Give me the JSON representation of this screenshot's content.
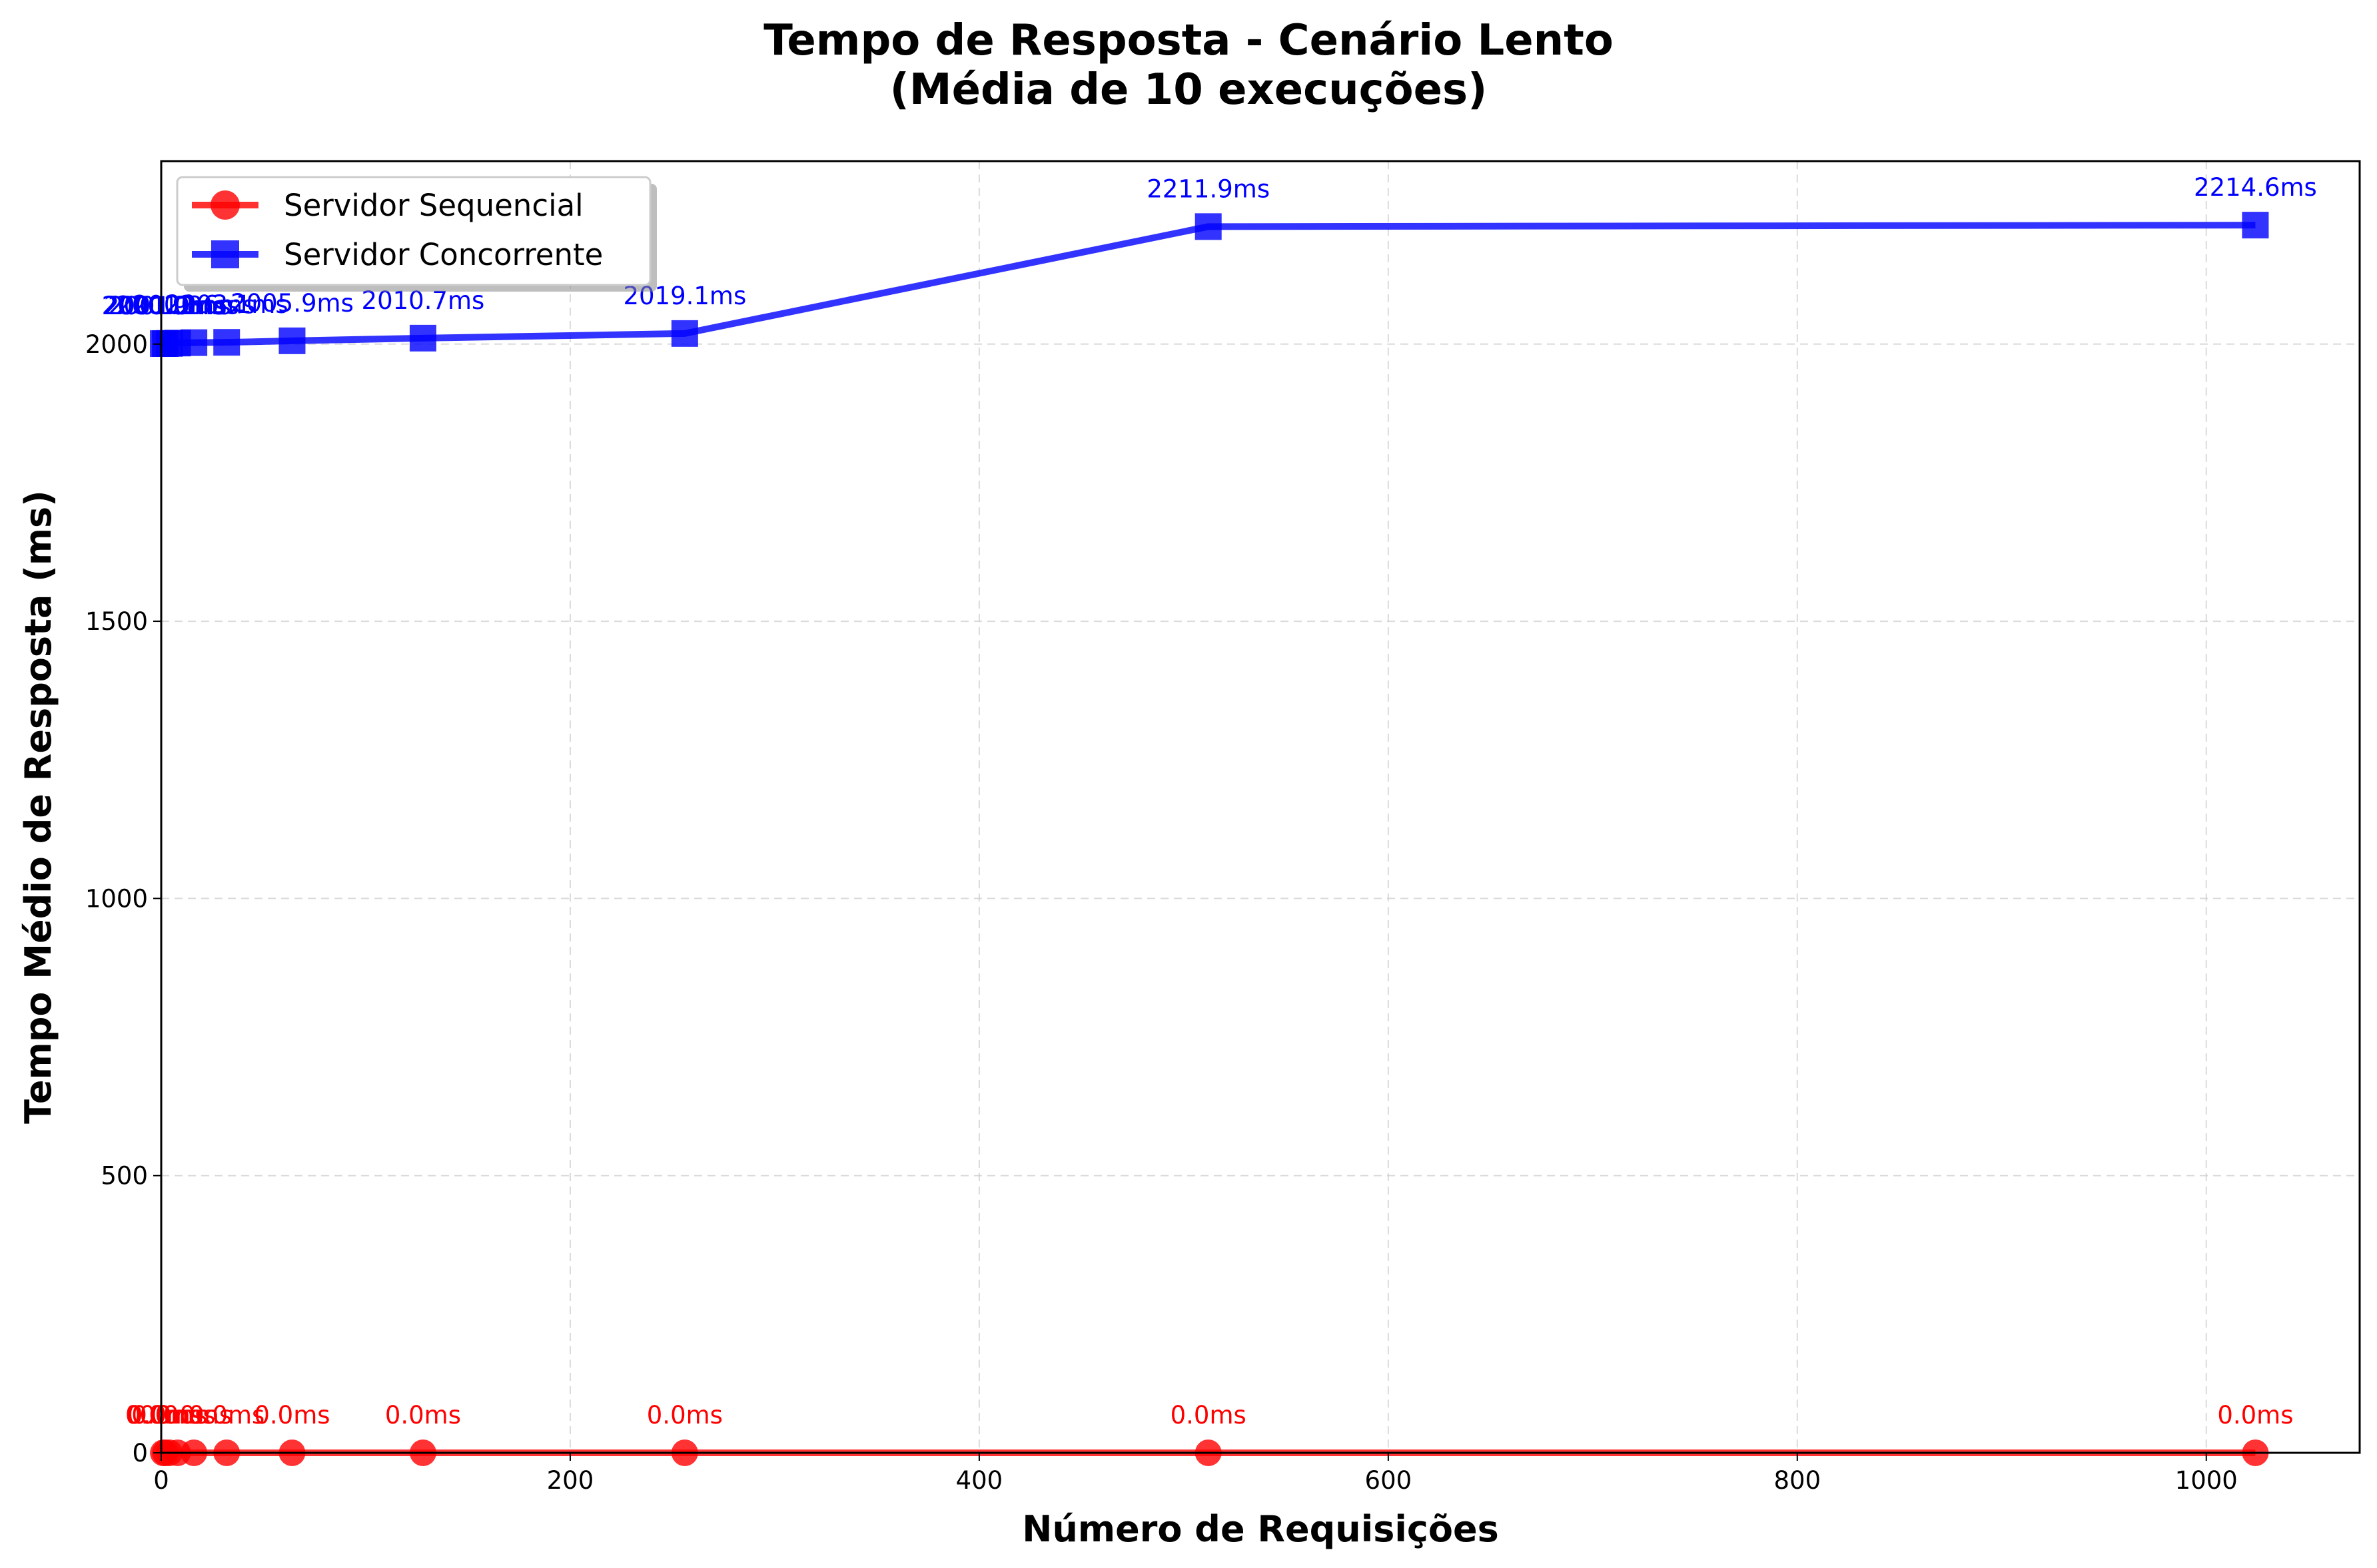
{
  "chart_data": {
    "type": "line",
    "title": "Tempo de Resposta - Cenário Lento",
    "subtitle": "(Média de 10 execuções)",
    "xlabel": "Número de Requisições",
    "ylabel": "Tempo Médio de Resposta (ms)",
    "xlim": [
      0,
      1075
    ],
    "ylim": [
      0,
      2330
    ],
    "xticks": [
      0,
      200,
      400,
      600,
      800,
      1000
    ],
    "yticks": [
      0,
      500,
      1000,
      1500,
      2000
    ],
    "grid": true,
    "legend_position": "top-left",
    "x": [
      1,
      2,
      4,
      8,
      16,
      32,
      64,
      128,
      256,
      512,
      1024
    ],
    "series": [
      {
        "name": "Servidor Sequencial",
        "color": "#ff0000",
        "marker": "circle",
        "values": [
          0.0,
          0.0,
          0.0,
          0.0,
          0.0,
          0.0,
          0.0,
          0.0,
          0.0,
          0.0,
          0.0
        ],
        "labels": [
          "0.0ms",
          "0.0ms",
          "0.0ms",
          "0.0ms",
          "0.0ms",
          "0.0ms",
          "0.0ms",
          "0.0ms",
          "0.0ms",
          "0.0ms",
          "0.0ms"
        ]
      },
      {
        "name": "Servidor Concorrente",
        "color": "#0000ff",
        "marker": "square",
        "values": [
          2000.9,
          2001.0,
          2001.2,
          2001.8,
          2002.6,
          2003.1,
          2005.9,
          2010.7,
          2019.1,
          2211.9,
          2214.6
        ],
        "labels": [
          "2000.9ms",
          "2001.0ms",
          "2001.2ms",
          "2001.8ms",
          "2002.6ms",
          "2003.1ms",
          "2005.9ms",
          "2010.7ms",
          "2019.1ms",
          "2211.9ms",
          "2214.6ms"
        ]
      }
    ]
  }
}
